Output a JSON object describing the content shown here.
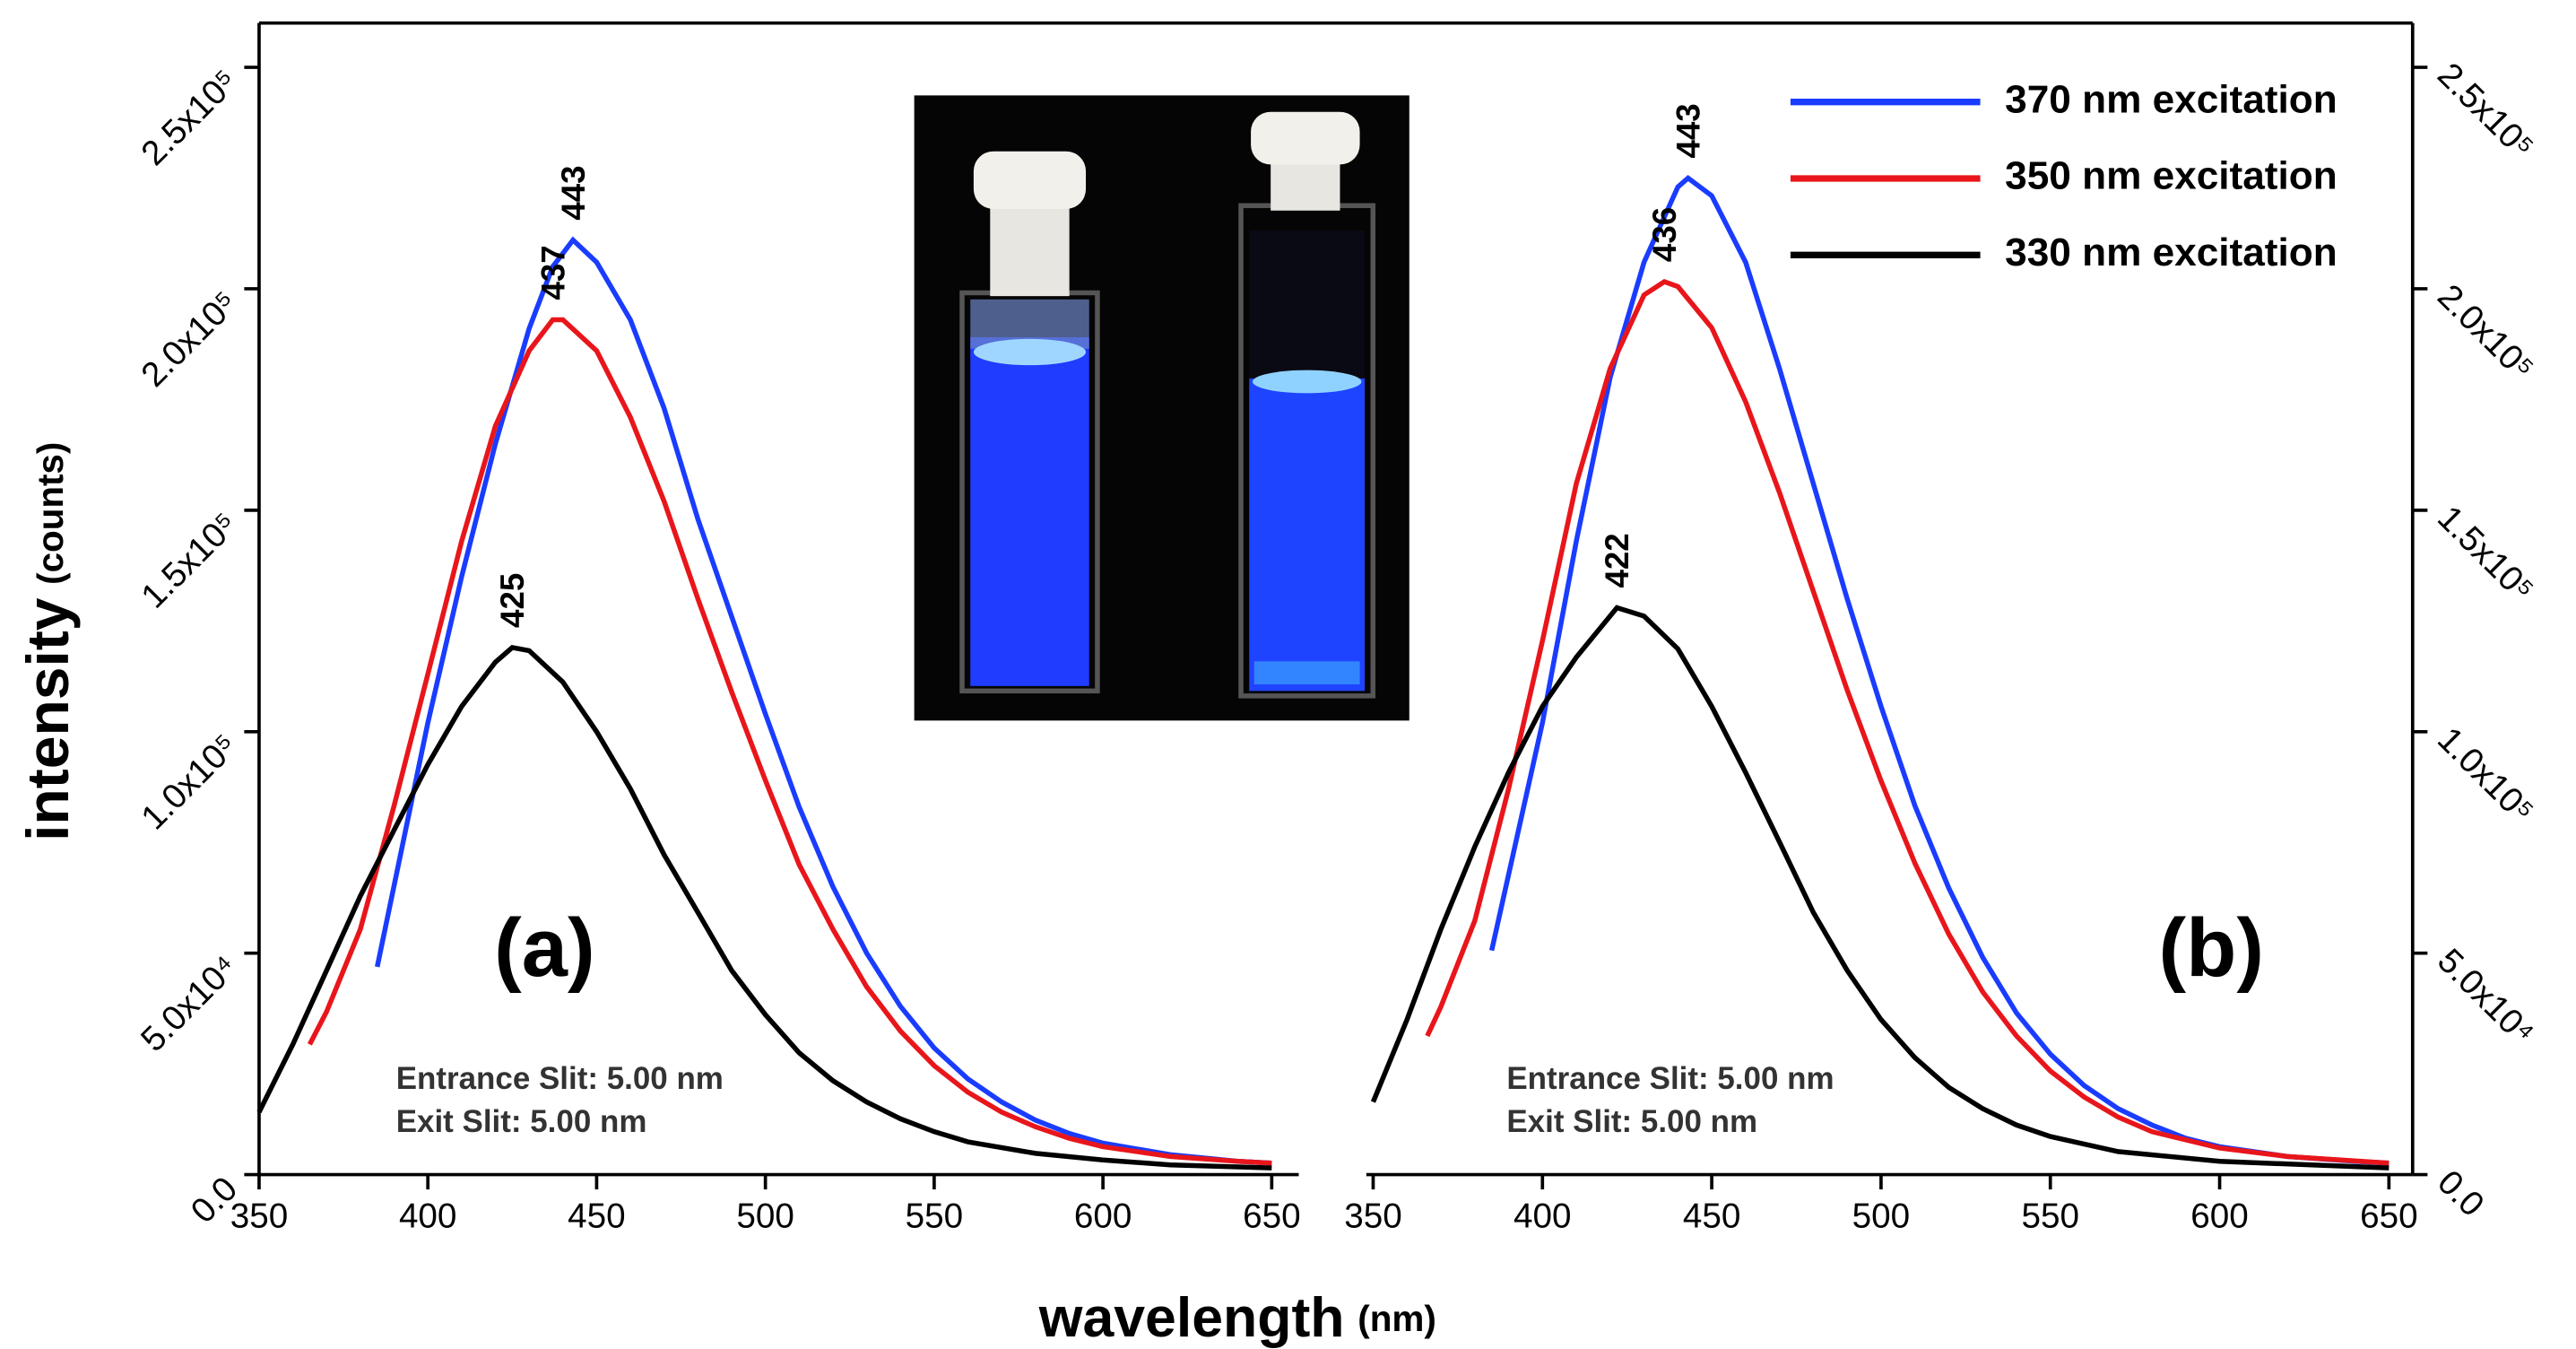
{
  "xlabel": "wavelength",
  "xlabel_unit": "(nm)",
  "ylabel": "intensity",
  "ylabel_unit": "(counts)",
  "chart_data": [
    {
      "type": "line",
      "panel_label": "(a)",
      "yaxis_side": "left",
      "notes": [
        "Entrance Slit: 5.00 nm",
        "Exit Slit: 5.00 nm"
      ],
      "xlim": [
        350,
        658
      ],
      "xticks": [
        350,
        400,
        450,
        500,
        550,
        600,
        650
      ],
      "ylim": [
        0,
        260000
      ],
      "yticks": [
        {
          "value": 0,
          "label": "0.0"
        },
        {
          "value": 50000,
          "label": "5.0x10⁴"
        },
        {
          "value": 100000,
          "label": "1.0x10⁵"
        },
        {
          "value": 150000,
          "label": "1.5x10⁵"
        },
        {
          "value": 200000,
          "label": "2.0x10⁵"
        },
        {
          "value": 250000,
          "label": "2.5x10⁵"
        }
      ],
      "series": [
        {
          "name": "370 nm excitation",
          "color": "#1a3cff",
          "x": [
            385,
            400,
            410,
            420,
            430,
            437,
            443,
            450,
            460,
            470,
            480,
            490,
            500,
            510,
            520,
            530,
            540,
            550,
            560,
            570,
            580,
            590,
            600,
            620,
            640,
            650
          ],
          "values": [
            46900,
            102000,
            135000,
            165000,
            191000,
            205000,
            211000,
            206000,
            193000,
            173000,
            148000,
            126000,
            104000,
            83000,
            65000,
            50000,
            38000,
            28600,
            21600,
            16400,
            12300,
            9300,
            7100,
            4500,
            3000,
            2600
          ]
        },
        {
          "name": "350 nm excitation",
          "color": "#e8161b",
          "x": [
            365,
            370,
            380,
            390,
            400,
            410,
            420,
            430,
            437,
            440,
            450,
            460,
            470,
            480,
            490,
            500,
            510,
            520,
            530,
            540,
            550,
            560,
            570,
            580,
            590,
            600,
            620,
            640,
            650
          ],
          "values": [
            29400,
            36800,
            55400,
            83300,
            113000,
            143000,
            169000,
            186000,
            193000,
            193000,
            186000,
            171000,
            152000,
            130000,
            109000,
            89000,
            70000,
            55400,
            42400,
            32400,
            24600,
            18600,
            14100,
            10800,
            8200,
            6300,
            4100,
            3000,
            2600
          ]
        },
        {
          "name": "330 nm excitation",
          "color": "#000000",
          "x": [
            350,
            360,
            370,
            380,
            390,
            400,
            410,
            420,
            425,
            430,
            440,
            450,
            460,
            470,
            480,
            490,
            500,
            510,
            520,
            530,
            540,
            550,
            560,
            580,
            600,
            620,
            650
          ],
          "values": [
            14100,
            29400,
            46100,
            62900,
            77800,
            92600,
            105700,
            115700,
            119000,
            118300,
            111200,
            100000,
            87100,
            72200,
            59200,
            46100,
            36100,
            27500,
            21200,
            16400,
            12600,
            9700,
            7400,
            4800,
            3300,
            2200,
            1500
          ]
        }
      ],
      "peaks": [
        {
          "series": 0,
          "x": 443
        },
        {
          "series": 1,
          "x": 437
        },
        {
          "series": 2,
          "x": 425
        }
      ]
    },
    {
      "type": "line",
      "panel_label": "(b)",
      "yaxis_side": "right",
      "legend": "upper right",
      "notes": [
        "Entrance Slit: 5.00 nm",
        "Exit Slit: 5.00 nm"
      ],
      "xlim": [
        348,
        657
      ],
      "xticks": [
        350,
        400,
        450,
        500,
        550,
        600,
        650
      ],
      "ylim": [
        0,
        260000
      ],
      "yticks": [
        {
          "value": 0,
          "label": "0.0"
        },
        {
          "value": 50000,
          "label": "5.0x10⁴"
        },
        {
          "value": 100000,
          "label": "1.0x10⁵"
        },
        {
          "value": 150000,
          "label": "1.5x10⁵"
        },
        {
          "value": 200000,
          "label": "2.0x10⁵"
        },
        {
          "value": 250000,
          "label": "2.5x10⁵"
        }
      ],
      "series": [
        {
          "name": "370 nm excitation",
          "color": "#1a3cff",
          "x": [
            385,
            400,
            410,
            420,
            430,
            440,
            443,
            450,
            460,
            470,
            480,
            490,
            500,
            510,
            520,
            530,
            540,
            550,
            560,
            570,
            580,
            590,
            600,
            620,
            640,
            650
          ],
          "values": [
            50600,
            102000,
            143000,
            180000,
            206000,
            223000,
            225000,
            221000,
            206000,
            182000,
            156000,
            130000,
            105700,
            83300,
            64700,
            49100,
            36500,
            27200,
            20100,
            14900,
            11200,
            8200,
            6300,
            4100,
            3000,
            2600
          ]
        },
        {
          "name": "350 nm excitation",
          "color": "#e8161b",
          "x": [
            366,
            370,
            380,
            390,
            400,
            410,
            420,
            430,
            436,
            440,
            450,
            460,
            470,
            480,
            490,
            500,
            510,
            520,
            530,
            540,
            550,
            560,
            570,
            580,
            600,
            620,
            650
          ],
          "values": [
            31300,
            37900,
            57300,
            87100,
            120500,
            156000,
            182000,
            198600,
            201600,
            200500,
            191200,
            174500,
            154000,
            131700,
            109400,
            88900,
            70300,
            54300,
            41300,
            31300,
            23400,
            17500,
            13000,
            9700,
            6000,
            4100,
            2600
          ]
        },
        {
          "name": "330 nm excitation",
          "color": "#000000",
          "x": [
            350,
            360,
            370,
            380,
            390,
            400,
            410,
            422,
            430,
            440,
            450,
            460,
            470,
            480,
            490,
            500,
            510,
            520,
            530,
            540,
            550,
            570,
            600,
            650
          ],
          "values": [
            16400,
            35000,
            55400,
            74000,
            90800,
            105700,
            116800,
            128000,
            126100,
            118700,
            105700,
            90800,
            75100,
            59200,
            46100,
            35000,
            26400,
            19700,
            14900,
            11200,
            8600,
            5200,
            3000,
            1500
          ]
        }
      ],
      "peaks": [
        {
          "series": 0,
          "x": 443
        },
        {
          "series": 1,
          "x": 436
        },
        {
          "series": 2,
          "x": 422
        }
      ]
    }
  ]
}
